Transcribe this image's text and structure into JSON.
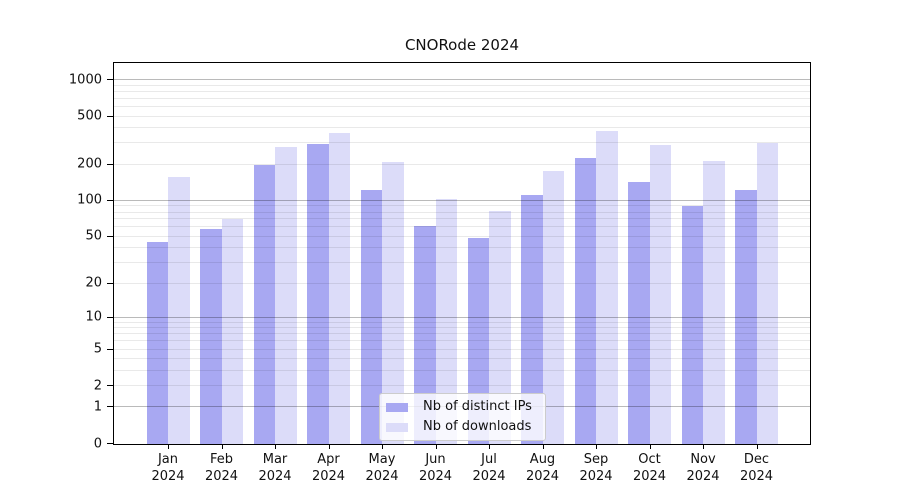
{
  "chart_data": {
    "type": "bar",
    "title": "CNORode 2024",
    "categories": [
      "Jan 2024",
      "Feb 2024",
      "Mar 2024",
      "Apr 2024",
      "May 2024",
      "Jun 2024",
      "Jul 2024",
      "Aug 2024",
      "Sep 2024",
      "Oct 2024",
      "Nov 2024",
      "Dec 2024"
    ],
    "series": [
      {
        "name": "Nb of distinct IPs",
        "color": "#a8a8f2",
        "values": [
          45,
          58,
          198,
          295,
          122,
          61,
          48,
          111,
          226,
          143,
          90,
          121
        ]
      },
      {
        "name": "Nb of downloads",
        "color": "#dcdcf9",
        "values": [
          155,
          70,
          276,
          365,
          208,
          102,
          82,
          176,
          376,
          289,
          212,
          301
        ]
      }
    ],
    "xlabel": "",
    "ylabel": "",
    "y_ticks": [
      0,
      1,
      2,
      5,
      10,
      20,
      50,
      100,
      200,
      500,
      1000
    ],
    "y_scale": "log10(value+1)",
    "ylim": [
      0,
      1470
    ],
    "grid": "on",
    "legend_position": "lower center inside plot"
  },
  "colors": {
    "bar_ips": "#a8a8f2",
    "bar_downloads": "#dcdcf9",
    "major_grid": "#bababa",
    "minor_grid": "#e9e9e9",
    "axis": "#000000",
    "background": "#ffffff"
  }
}
